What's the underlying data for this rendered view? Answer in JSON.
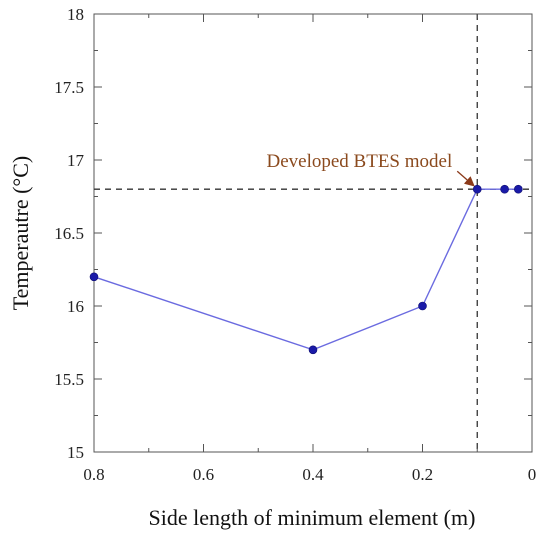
{
  "chart_data": {
    "type": "line",
    "xlabel": "Side length of minimum element (m)",
    "ylabel": "Temperautre (°C)",
    "xlim": [
      0.8,
      0.0
    ],
    "ylim": [
      15,
      18
    ],
    "x_ticks": [
      0.8,
      0.6,
      0.4,
      0.2,
      0
    ],
    "x_tick_labels": [
      "0.8",
      "0.6",
      "0.4",
      "0.2",
      "0"
    ],
    "y_ticks": [
      15,
      15.5,
      16,
      16.5,
      17,
      17.5,
      18
    ],
    "y_tick_labels": [
      "15",
      "15.5",
      "16",
      "16.5",
      "17",
      "17.5",
      "18"
    ],
    "series": [
      {
        "x": [
          0.8,
          0.4,
          0.2,
          0.1,
          0.05,
          0.025
        ],
        "y": [
          16.2,
          15.7,
          16.0,
          16.8,
          16.8,
          16.8
        ],
        "color": "#6b6be0",
        "marker_color": "#1a1aa8"
      }
    ],
    "reference_lines": {
      "x": 0.1,
      "y": 16.8
    },
    "annotation": {
      "text": "Developed BTES model",
      "x": 0.1,
      "y": 16.8
    },
    "grid": false
  }
}
